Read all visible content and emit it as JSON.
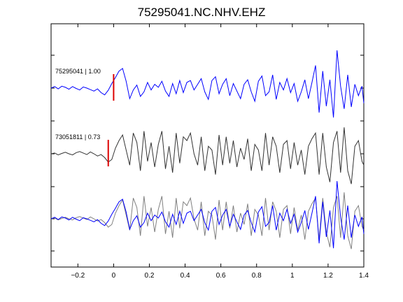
{
  "chart_data": {
    "type": "line",
    "title": "75295041.NC.NHV.EHZ",
    "xlabel": "",
    "ylabel": "",
    "xlim": [
      -0.35,
      1.4
    ],
    "x_ticks": [
      -0.2,
      0,
      0.2,
      0.4,
      0.6,
      0.8,
      1,
      1.2,
      1.4
    ],
    "x_tick_labels": [
      "−0.2",
      "0",
      "0.2",
      "0.4",
      "0.6",
      "0.8",
      "1",
      "1.2",
      "1.4"
    ],
    "grid": false,
    "traces": [
      {
        "label": "75295041 | 1.00",
        "color": "#0000ff",
        "pick_time": 0.0,
        "pick_color": "#dd0000",
        "x": [
          -0.35,
          -0.33,
          -0.31,
          -0.29,
          -0.27,
          -0.25,
          -0.23,
          -0.21,
          -0.19,
          -0.17,
          -0.15,
          -0.13,
          -0.11,
          -0.09,
          -0.07,
          -0.05,
          -0.03,
          -0.01,
          0.01,
          0.03,
          0.05,
          0.07,
          0.09,
          0.11,
          0.13,
          0.15,
          0.17,
          0.19,
          0.21,
          0.23,
          0.25,
          0.27,
          0.29,
          0.31,
          0.33,
          0.35,
          0.37,
          0.39,
          0.41,
          0.43,
          0.45,
          0.47,
          0.49,
          0.51,
          0.53,
          0.55,
          0.57,
          0.59,
          0.61,
          0.63,
          0.65,
          0.67,
          0.69,
          0.71,
          0.73,
          0.75,
          0.77,
          0.79,
          0.81,
          0.83,
          0.85,
          0.87,
          0.89,
          0.91,
          0.93,
          0.95,
          0.97,
          0.99,
          1.01,
          1.03,
          1.05,
          1.07,
          1.09,
          1.11,
          1.13,
          1.15,
          1.17,
          1.19,
          1.21,
          1.23,
          1.25,
          1.27,
          1.29,
          1.31,
          1.33,
          1.35,
          1.37,
          1.39,
          1.4
        ],
        "y": [
          0.0,
          0.04,
          -0.02,
          0.05,
          0.02,
          -0.03,
          0.04,
          -0.01,
          -0.05,
          0.03,
          0.0,
          -0.04,
          -0.08,
          -0.02,
          -0.12,
          -0.18,
          -0.06,
          0.12,
          0.28,
          0.45,
          0.52,
          0.18,
          -0.28,
          -0.05,
          0.08,
          -0.22,
          -0.1,
          0.15,
          -0.05,
          0.1,
          0.02,
          0.18,
          -0.08,
          -0.22,
          0.12,
          -0.15,
          0.2,
          -0.12,
          0.15,
          0.2,
          -0.05,
          0.1,
          0.25,
          -0.1,
          -0.3,
          0.2,
          0.3,
          -0.15,
          0.1,
          0.25,
          -0.2,
          0.12,
          -0.08,
          -0.28,
          0.1,
          0.22,
          -0.1,
          -0.35,
          0.18,
          0.32,
          -0.2,
          -0.1,
          0.35,
          -0.3,
          0.15,
          -0.05,
          0.25,
          -0.12,
          0.12,
          -0.35,
          -0.1,
          0.22,
          -0.28,
          0.15,
          0.6,
          -0.65,
          0.45,
          -0.48,
          0.22,
          -0.78,
          1.0,
          0.05,
          -0.55,
          0.35,
          -0.5,
          0.1,
          -0.2,
          0.05,
          -0.4
        ]
      },
      {
        "label": "73051811 | 0.73",
        "color": "#333333",
        "pick_time": -0.03,
        "pick_color": "#dd0000",
        "x": [
          -0.35,
          -0.33,
          -0.31,
          -0.29,
          -0.27,
          -0.25,
          -0.23,
          -0.21,
          -0.19,
          -0.17,
          -0.15,
          -0.13,
          -0.11,
          -0.09,
          -0.07,
          -0.05,
          -0.03,
          -0.01,
          0.01,
          0.03,
          0.05,
          0.07,
          0.09,
          0.11,
          0.13,
          0.15,
          0.17,
          0.19,
          0.21,
          0.23,
          0.25,
          0.27,
          0.29,
          0.31,
          0.33,
          0.35,
          0.37,
          0.39,
          0.41,
          0.43,
          0.45,
          0.47,
          0.49,
          0.51,
          0.53,
          0.55,
          0.57,
          0.59,
          0.61,
          0.63,
          0.65,
          0.67,
          0.69,
          0.71,
          0.73,
          0.75,
          0.77,
          0.79,
          0.81,
          0.83,
          0.85,
          0.87,
          0.89,
          0.91,
          0.93,
          0.95,
          0.97,
          0.99,
          1.01,
          1.03,
          1.05,
          1.07,
          1.09,
          1.11,
          1.13,
          1.15,
          1.17,
          1.19,
          1.21,
          1.23,
          1.25,
          1.27,
          1.29,
          1.31,
          1.33,
          1.35,
          1.37,
          1.39,
          1.4
        ],
        "y": [
          0.0,
          0.02,
          -0.03,
          0.01,
          0.04,
          0.0,
          -0.03,
          0.03,
          0.06,
          0.02,
          -0.02,
          0.05,
          0.0,
          -0.06,
          -0.02,
          -0.1,
          -0.22,
          -0.15,
          0.15,
          0.35,
          0.5,
          0.1,
          -0.3,
          0.55,
          0.3,
          -0.45,
          0.6,
          -0.2,
          0.3,
          -0.35,
          0.25,
          0.6,
          -0.4,
          0.2,
          -0.5,
          0.55,
          -0.25,
          0.45,
          0.35,
          0.55,
          0.0,
          -0.3,
          0.45,
          -0.45,
          0.2,
          0.1,
          -0.55,
          0.5,
          -0.3,
          0.45,
          -0.25,
          0.35,
          -0.35,
          0.15,
          -0.15,
          0.4,
          -0.45,
          0.25,
          0.1,
          -0.45,
          0.55,
          -0.3,
          0.45,
          0.2,
          -0.5,
          0.25,
          0.35,
          -0.4,
          0.3,
          -0.3,
          0.1,
          -0.55,
          0.2,
          0.4,
          0.55,
          -0.55,
          0.55,
          -0.35,
          -0.75,
          0.3,
          0.6,
          -0.5,
          0.7,
          -0.45,
          -0.8,
          0.2,
          0.35,
          -0.2,
          -0.3
        ]
      }
    ]
  }
}
